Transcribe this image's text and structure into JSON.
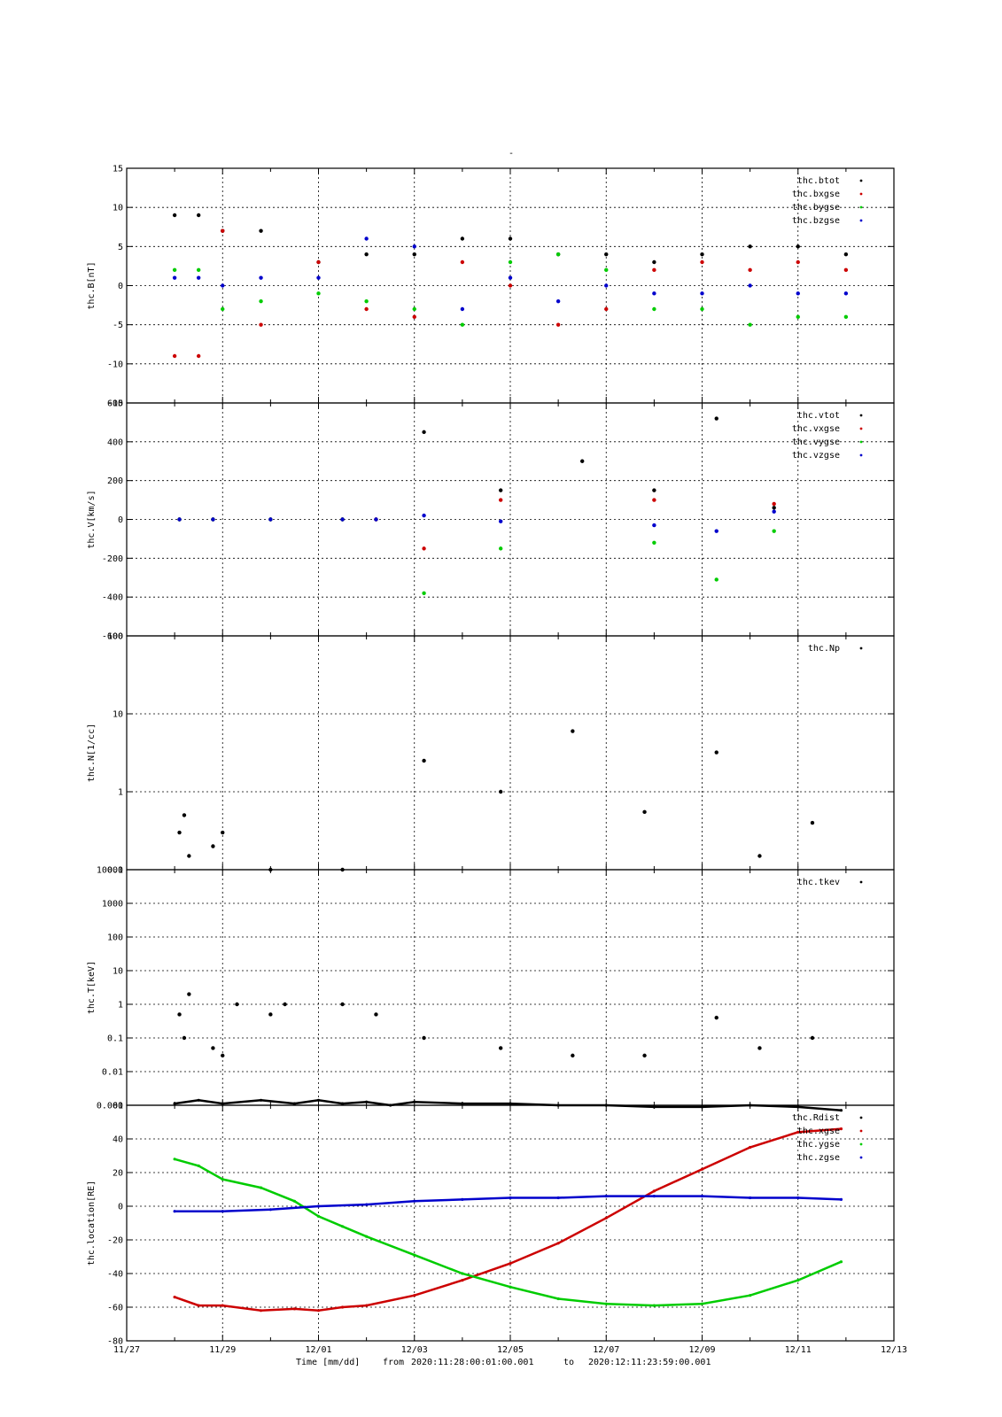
{
  "title": "-",
  "footer": {
    "label": "Time [mm/dd]",
    "from_word": "from",
    "from": "2020:11:28:00:01:00.001",
    "to_word": "to",
    "to": "2020:12:11:23:59:00.001"
  },
  "x_ticks": [
    "11/27",
    "11/29",
    "12/01",
    "12/03",
    "12/05",
    "12/07",
    "12/09",
    "12/11",
    "12/13"
  ],
  "colors": {
    "black": "#000000",
    "red": "#cc0000",
    "green": "#00cc00",
    "blue": "#0000cc"
  },
  "chart_data": [
    {
      "type": "scatter",
      "ylabel": "thc.B[nT]",
      "ylim": [
        -15,
        15
      ],
      "yticks": [
        "-15",
        "-10",
        "-5",
        "0",
        "5",
        "10",
        "15"
      ],
      "series": [
        {
          "name": "thc.btot",
          "color": "#000000",
          "values": [
            [
              1,
              9
            ],
            [
              1.5,
              9
            ],
            [
              2,
              7
            ],
            [
              2.8,
              7
            ],
            [
              4,
              3
            ],
            [
              5,
              4
            ],
            [
              6,
              4
            ],
            [
              7,
              6
            ],
            [
              8,
              6
            ],
            [
              9,
              4
            ],
            [
              10,
              4
            ],
            [
              11,
              3
            ],
            [
              12,
              4
            ],
            [
              13,
              5
            ],
            [
              14,
              5
            ],
            [
              15,
              4
            ]
          ]
        },
        {
          "name": "thc.bxgse",
          "color": "#cc0000",
          "values": [
            [
              1,
              -9
            ],
            [
              1.5,
              -9
            ],
            [
              2,
              7
            ],
            [
              2.8,
              -5
            ],
            [
              4,
              3
            ],
            [
              5,
              -3
            ],
            [
              6,
              -4
            ],
            [
              7,
              3
            ],
            [
              8,
              0
            ],
            [
              9,
              -5
            ],
            [
              10,
              -3
            ],
            [
              11,
              2
            ],
            [
              12,
              3
            ],
            [
              13,
              2
            ],
            [
              14,
              3
            ],
            [
              15,
              2
            ]
          ]
        },
        {
          "name": "thc.bygse",
          "color": "#00cc00",
          "values": [
            [
              1,
              2
            ],
            [
              1.5,
              2
            ],
            [
              2,
              -3
            ],
            [
              2.8,
              -2
            ],
            [
              4,
              -1
            ],
            [
              5,
              -2
            ],
            [
              6,
              -3
            ],
            [
              7,
              -5
            ],
            [
              8,
              3
            ],
            [
              9,
              4
            ],
            [
              10,
              2
            ],
            [
              11,
              -3
            ],
            [
              12,
              -3
            ],
            [
              13,
              -5
            ],
            [
              14,
              -4
            ],
            [
              15,
              -4
            ]
          ]
        },
        {
          "name": "thc.bzgse",
          "color": "#0000cc",
          "values": [
            [
              1,
              1
            ],
            [
              1.5,
              1
            ],
            [
              2,
              0
            ],
            [
              2.8,
              1
            ],
            [
              4,
              1
            ],
            [
              5,
              6
            ],
            [
              6,
              5
            ],
            [
              7,
              -3
            ],
            [
              8,
              1
            ],
            [
              9,
              -2
            ],
            [
              10,
              0
            ],
            [
              11,
              -1
            ],
            [
              12,
              -1
            ],
            [
              13,
              0
            ],
            [
              14,
              -1
            ],
            [
              15,
              -1
            ]
          ]
        }
      ]
    },
    {
      "type": "scatter",
      "ylabel": "thc.V[km/s]",
      "ylim": [
        -600,
        600
      ],
      "yticks": [
        "-600",
        "-400",
        "-200",
        "0",
        "200",
        "400",
        "600"
      ],
      "series": [
        {
          "name": "thc.vtot",
          "color": "#000000",
          "values": [
            [
              1.1,
              0
            ],
            [
              1.8,
              0
            ],
            [
              3.0,
              0
            ],
            [
              4.5,
              0
            ],
            [
              5.2,
              0
            ],
            [
              6.2,
              450
            ],
            [
              7.8,
              150
            ],
            [
              9.5,
              300
            ],
            [
              11.0,
              150
            ],
            [
              12.3,
              520
            ],
            [
              13.5,
              60
            ]
          ]
        },
        {
          "name": "thc.vxgse",
          "color": "#cc0000",
          "values": [
            [
              1.1,
              0
            ],
            [
              1.8,
              0
            ],
            [
              3.0,
              0
            ],
            [
              4.5,
              0
            ],
            [
              5.2,
              0
            ],
            [
              6.2,
              -150
            ],
            [
              7.8,
              100
            ],
            [
              11.0,
              100
            ],
            [
              13.5,
              80
            ]
          ]
        },
        {
          "name": "thc.vygse",
          "color": "#00cc00",
          "values": [
            [
              1.1,
              0
            ],
            [
              1.8,
              0
            ],
            [
              3.0,
              0
            ],
            [
              4.5,
              0
            ],
            [
              6.2,
              -380
            ],
            [
              7.8,
              -150
            ],
            [
              11.0,
              -120
            ],
            [
              12.3,
              -310
            ],
            [
              13.5,
              -60
            ]
          ]
        },
        {
          "name": "thc.vzgse",
          "color": "#0000cc",
          "values": [
            [
              1.1,
              0
            ],
            [
              1.8,
              0
            ],
            [
              3.0,
              0
            ],
            [
              4.5,
              0
            ],
            [
              5.2,
              0
            ],
            [
              6.2,
              20
            ],
            [
              7.8,
              -10
            ],
            [
              11.0,
              -30
            ],
            [
              12.3,
              -60
            ],
            [
              13.5,
              40
            ]
          ]
        }
      ]
    },
    {
      "type": "scatter",
      "ylabel": "thc.N[1/cc]",
      "scale": "log",
      "ylim": [
        0.1,
        100
      ],
      "yticks": [
        "0.1",
        "1",
        "10",
        "100"
      ],
      "series": [
        {
          "name": "thc.Np",
          "color": "#000000",
          "values": [
            [
              1.1,
              0.3
            ],
            [
              1.2,
              0.5
            ],
            [
              1.3,
              0.15
            ],
            [
              1.8,
              0.2
            ],
            [
              2.0,
              0.3
            ],
            [
              3.0,
              0.1
            ],
            [
              4.5,
              0.1
            ],
            [
              6.2,
              2.5
            ],
            [
              7.8,
              1.0
            ],
            [
              9.3,
              6
            ],
            [
              10.8,
              0.55
            ],
            [
              12.3,
              3.2
            ],
            [
              13.2,
              0.15
            ],
            [
              14.3,
              0.4
            ]
          ]
        }
      ]
    },
    {
      "type": "scatter",
      "ylabel": "thc.T[keV]",
      "scale": "log",
      "ylim": [
        0.001,
        10000
      ],
      "yticks": [
        "0.001",
        "0.01",
        "0.1",
        "1",
        "10",
        "100",
        "1000",
        "10000"
      ],
      "series": [
        {
          "name": "thc.tkev",
          "color": "#000000",
          "values": [
            [
              1.1,
              0.5
            ],
            [
              1.2,
              0.1
            ],
            [
              1.3,
              2
            ],
            [
              1.8,
              0.05
            ],
            [
              2.0,
              0.03
            ],
            [
              2.3,
              1
            ],
            [
              3.0,
              0.5
            ],
            [
              3.3,
              1
            ],
            [
              4.5,
              1
            ],
            [
              5.2,
              0.5
            ],
            [
              6.2,
              0.1
            ],
            [
              7.8,
              0.05
            ],
            [
              9.3,
              0.03
            ],
            [
              10.8,
              0.03
            ],
            [
              12.3,
              0.4
            ],
            [
              13.2,
              0.05
            ],
            [
              14.3,
              0.1
            ]
          ]
        }
      ]
    },
    {
      "type": "line",
      "ylabel": "thc.location[RE]",
      "ylim": [
        -80,
        60
      ],
      "yticks": [
        "-80",
        "-60",
        "-40",
        "-20",
        "0",
        "20",
        "40",
        "60"
      ],
      "series": [
        {
          "name": "thc.Rdist",
          "color": "#000000",
          "values": [
            [
              1,
              61
            ],
            [
              1.5,
              63
            ],
            [
              2,
              61
            ],
            [
              2.8,
              63
            ],
            [
              3.5,
              61
            ],
            [
              4,
              63
            ],
            [
              4.5,
              61
            ],
            [
              5,
              62
            ],
            [
              5.5,
              60
            ],
            [
              6,
              62
            ],
            [
              7,
              61
            ],
            [
              8,
              61
            ],
            [
              9,
              60
            ],
            [
              10,
              60
            ],
            [
              11,
              59
            ],
            [
              12,
              59
            ],
            [
              13,
              60
            ],
            [
              14,
              59
            ],
            [
              14.9,
              57
            ]
          ]
        },
        {
          "name": "thc.xgse",
          "color": "#cc0000",
          "values": [
            [
              1,
              -54
            ],
            [
              1.5,
              -59
            ],
            [
              2,
              -59
            ],
            [
              2.8,
              -62
            ],
            [
              3.5,
              -61
            ],
            [
              4,
              -62
            ],
            [
              4.5,
              -60
            ],
            [
              5,
              -59
            ],
            [
              6,
              -53
            ],
            [
              7,
              -44
            ],
            [
              8,
              -34
            ],
            [
              9,
              -22
            ],
            [
              10,
              -7
            ],
            [
              11,
              9
            ],
            [
              12,
              22
            ],
            [
              13,
              35
            ],
            [
              14,
              44
            ],
            [
              14.9,
              46
            ]
          ]
        },
        {
          "name": "thc.ygse",
          "color": "#00cc00",
          "values": [
            [
              1,
              28
            ],
            [
              1.5,
              24
            ],
            [
              2,
              16
            ],
            [
              2.8,
              11
            ],
            [
              3.5,
              3
            ],
            [
              4,
              -6
            ],
            [
              4.5,
              -12
            ],
            [
              5,
              -18
            ],
            [
              6,
              -29
            ],
            [
              7,
              -40
            ],
            [
              8,
              -48
            ],
            [
              9,
              -55
            ],
            [
              10,
              -58
            ],
            [
              11,
              -59
            ],
            [
              12,
              -58
            ],
            [
              13,
              -53
            ],
            [
              14,
              -44
            ],
            [
              14.9,
              -33
            ]
          ]
        },
        {
          "name": "thc.zgse",
          "color": "#0000cc",
          "values": [
            [
              1,
              -3
            ],
            [
              2,
              -3
            ],
            [
              3,
              -2
            ],
            [
              4,
              0
            ],
            [
              5,
              1
            ],
            [
              6,
              3
            ],
            [
              7,
              4
            ],
            [
              8,
              5
            ],
            [
              9,
              5
            ],
            [
              10,
              6
            ],
            [
              11,
              6
            ],
            [
              12,
              6
            ],
            [
              13,
              5
            ],
            [
              14,
              5
            ],
            [
              14.9,
              4
            ]
          ]
        }
      ]
    }
  ]
}
